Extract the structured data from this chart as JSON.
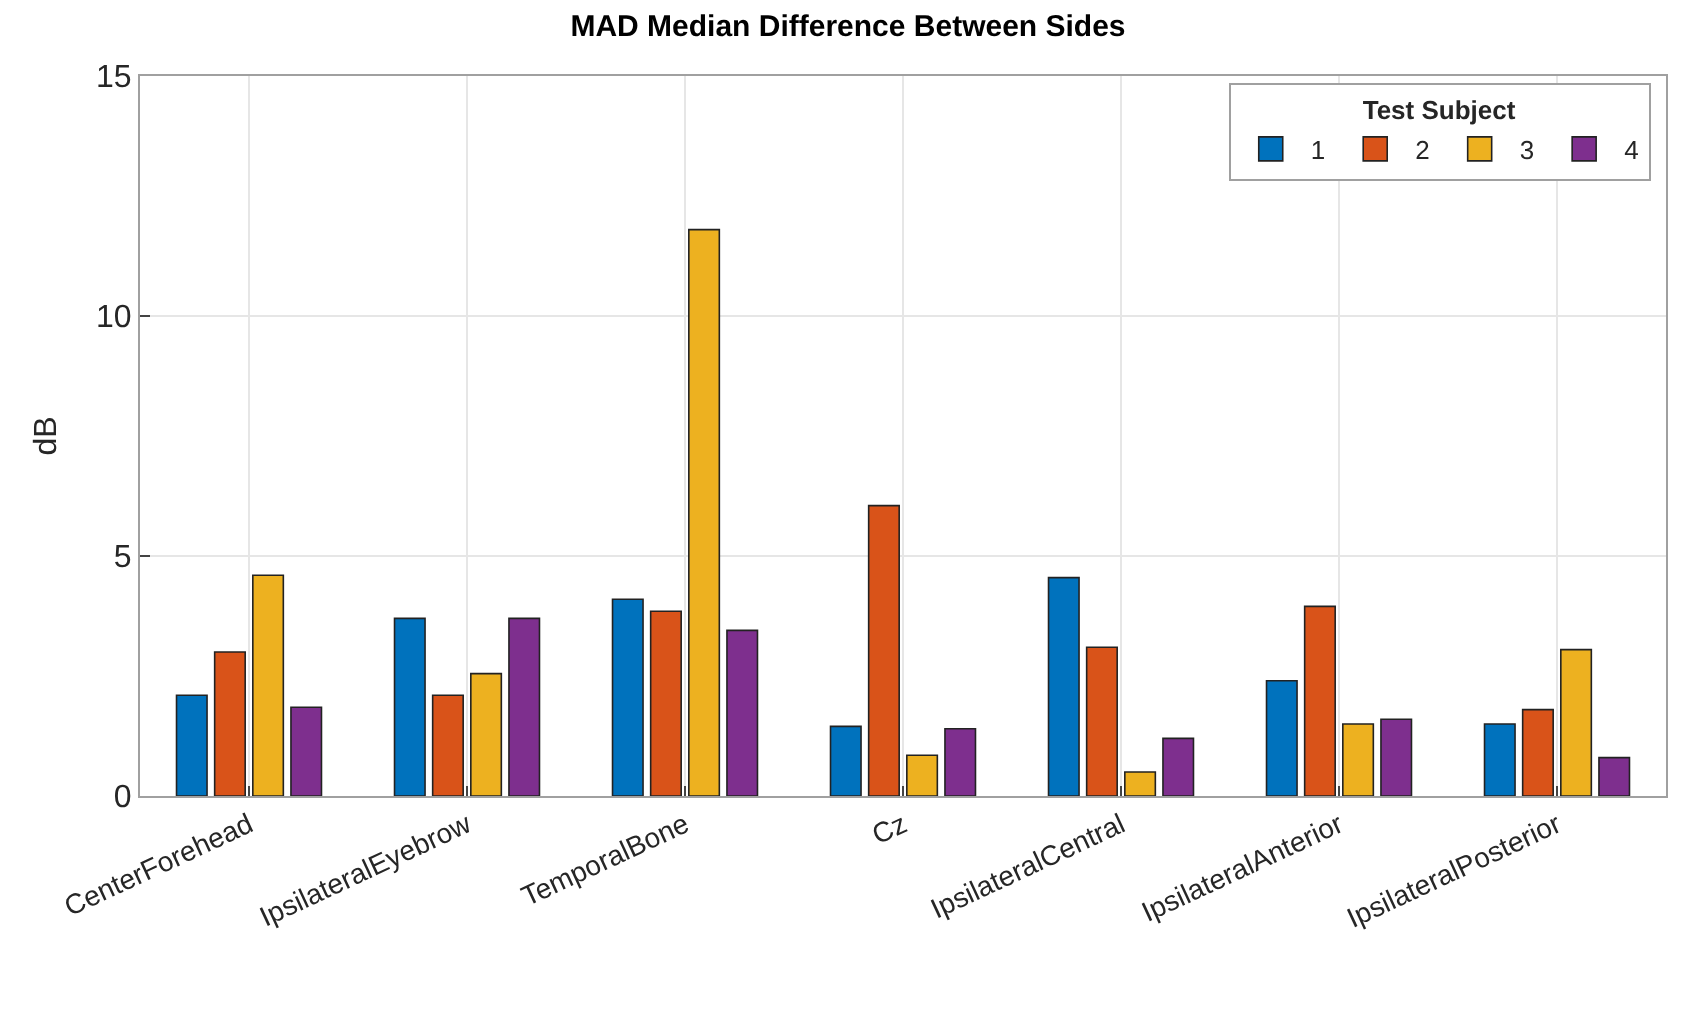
{
  "chart_data": {
    "type": "bar",
    "title": "MAD Median Difference Between Sides",
    "ylabel": "dB",
    "legend_title": "Test Subject",
    "categories": [
      "CenterForehead",
      "IpsilateralEyebrow",
      "TemporalBone",
      "Cz",
      "IpsilateralCentral",
      "IpsilateralAnterior",
      "IpsilateralPosterior"
    ],
    "series": [
      {
        "name": "1",
        "color": "#0072bd",
        "values": [
          2.1,
          3.7,
          4.1,
          1.45,
          4.55,
          2.4,
          1.5
        ]
      },
      {
        "name": "2",
        "color": "#d95319",
        "values": [
          3.0,
          2.1,
          3.85,
          6.05,
          3.1,
          3.95,
          1.8
        ]
      },
      {
        "name": "3",
        "color": "#edb120",
        "values": [
          4.6,
          2.55,
          11.8,
          0.85,
          0.5,
          1.5,
          3.05
        ]
      },
      {
        "name": "4",
        "color": "#7e2f8e",
        "values": [
          1.85,
          3.7,
          3.45,
          1.4,
          1.2,
          1.6,
          0.8
        ]
      }
    ],
    "ylim": [
      0,
      15
    ],
    "yticks": [
      0,
      5,
      10,
      15
    ],
    "grid": true,
    "legend": "top right"
  }
}
